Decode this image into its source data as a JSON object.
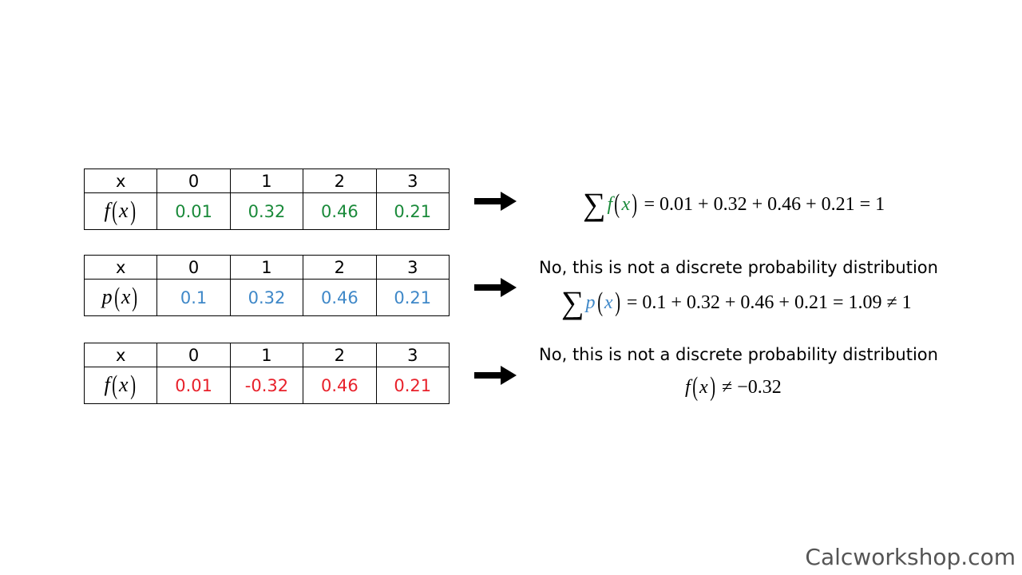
{
  "colors": {
    "green": "#1a8a3a",
    "blue": "#3f88c8",
    "red": "#e8212b"
  },
  "tables": [
    {
      "x_header": "x",
      "x_values": [
        "0",
        "1",
        "2",
        "3"
      ],
      "fn_name": "f",
      "fn_var": "x",
      "values": [
        "0.01",
        "0.32",
        "0.46",
        "0.21"
      ],
      "color": "#1a8a3a"
    },
    {
      "x_header": "x",
      "x_values": [
        "0",
        "1",
        "2",
        "3"
      ],
      "fn_name": "p",
      "fn_var": "x",
      "values": [
        "0.1",
        "0.32",
        "0.46",
        "0.21"
      ],
      "color": "#3f88c8"
    },
    {
      "x_header": "x",
      "x_values": [
        "0",
        "1",
        "2",
        "3"
      ],
      "fn_name": "f",
      "fn_var": "x",
      "values": [
        "0.01",
        "-0.32",
        "0.46",
        "0.21"
      ],
      "color": "#e8212b"
    }
  ],
  "results": [
    {
      "sigma": "∑",
      "fn_name": "f",
      "fn_var": "x",
      "expression": "= 0.01 + 0.32 + 0.46 + 0.21 = 1"
    },
    {
      "caption": "No, this is not a discrete probability distribution",
      "sigma": "∑",
      "fn_name": "p",
      "fn_var": "x",
      "expression": "= 0.1 + 0.32 + 0.46 + 0.21 = 1.09 ≠ 1"
    },
    {
      "caption": "No, this is not a discrete probability distribution",
      "fn_name": "f",
      "fn_var": "x",
      "expression": "≠ −0.32"
    }
  ],
  "brand": "Calcworkshop.com"
}
